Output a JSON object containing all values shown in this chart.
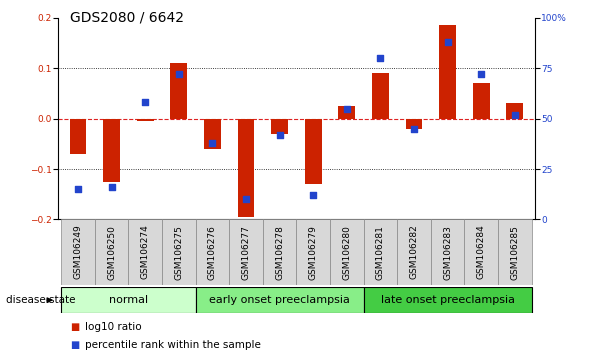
{
  "title": "GDS2080 / 6642",
  "samples": [
    "GSM106249",
    "GSM106250",
    "GSM106274",
    "GSM106275",
    "GSM106276",
    "GSM106277",
    "GSM106278",
    "GSM106279",
    "GSM106280",
    "GSM106281",
    "GSM106282",
    "GSM106283",
    "GSM106284",
    "GSM106285"
  ],
  "log10_ratio": [
    -0.07,
    -0.125,
    -0.005,
    0.11,
    -0.06,
    -0.195,
    -0.03,
    -0.13,
    0.025,
    0.09,
    -0.02,
    0.185,
    0.07,
    0.03
  ],
  "percentile_rank": [
    15,
    16,
    58,
    72,
    38,
    10,
    42,
    12,
    55,
    80,
    45,
    88,
    72,
    52
  ],
  "groups": [
    {
      "label": "normal",
      "start": 0,
      "end": 4,
      "color": "#ccffcc"
    },
    {
      "label": "early onset preeclampsia",
      "start": 4,
      "end": 9,
      "color": "#88ee88"
    },
    {
      "label": "late onset preeclampsia",
      "start": 9,
      "end": 14,
      "color": "#44cc44"
    }
  ],
  "ylim_left": [
    -0.2,
    0.2
  ],
  "ylim_right": [
    0,
    100
  ],
  "bar_color": "#cc2200",
  "dot_color": "#2244cc",
  "zero_line_color": "#dd2222",
  "grid_color": "#000000",
  "background_color": "#ffffff",
  "legend_bar_label": "log10 ratio",
  "legend_dot_label": "percentile rank within the sample",
  "disease_state_label": "disease state",
  "title_fontsize": 10,
  "tick_fontsize": 6.5,
  "label_fontsize": 7.5,
  "group_fontsize": 8,
  "sample_box_color": "#d8d8d8",
  "sample_box_edge_color": "#888888"
}
